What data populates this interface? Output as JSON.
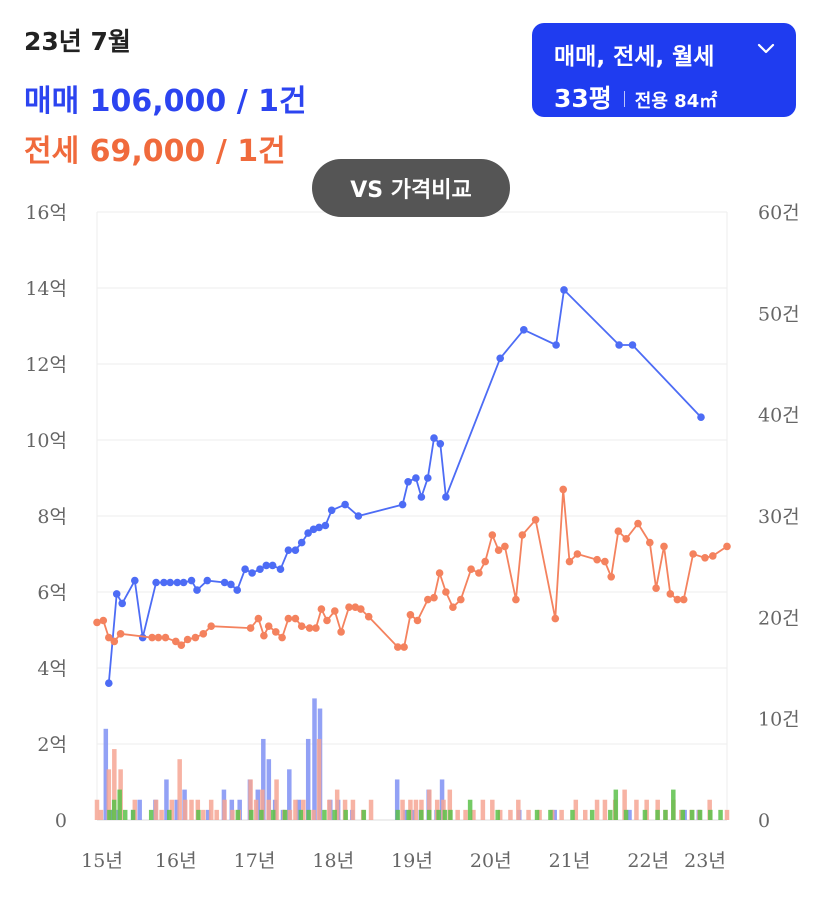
{
  "header": {
    "date": "23년 7월",
    "sale_summary": "매매 106,000 / 1건",
    "jeonse_summary": "전세 69,000 / 1건"
  },
  "type_selector": {
    "label": "매매, 전세, 월세",
    "pyeong": "33평",
    "area": "전용 84㎡"
  },
  "vs_button": {
    "label": "VS 가격비교"
  },
  "colors": {
    "sale": "#4d6cf5",
    "jeonse": "#f4825e",
    "monthly": "#5cc14a",
    "button": "#1f3cf0"
  },
  "chart_data": {
    "type": "line",
    "x_ticks": [
      "15년",
      "16년",
      "17년",
      "18년",
      "19년",
      "20년",
      "21년",
      "22년",
      "23년"
    ],
    "y_left_ticks": [
      "0",
      "2억",
      "4억",
      "6억",
      "8억",
      "10억",
      "12억",
      "14억",
      "16억"
    ],
    "y_right_ticks": [
      "0",
      "10건",
      "20건",
      "30건",
      "40건",
      "50건",
      "60건"
    ],
    "x_range": [
      2015.0,
      2023.0
    ],
    "y_left_range": [
      0,
      16
    ],
    "y_right_range": [
      0,
      60
    ],
    "grid": true,
    "price_series": [
      {
        "name": "매매",
        "color": "#4d6cf5",
        "points": [
          [
            2015.15,
            3.6
          ],
          [
            2015.25,
            5.95
          ],
          [
            2015.32,
            5.7
          ],
          [
            2015.48,
            6.3
          ],
          [
            2015.58,
            4.8
          ],
          [
            2015.75,
            6.25
          ],
          [
            2015.85,
            6.25
          ],
          [
            2015.93,
            6.25
          ],
          [
            2016.02,
            6.25
          ],
          [
            2016.1,
            6.25
          ],
          [
            2016.2,
            6.3
          ],
          [
            2016.27,
            6.05
          ],
          [
            2016.4,
            6.3
          ],
          [
            2016.62,
            6.25
          ],
          [
            2016.7,
            6.2
          ],
          [
            2016.78,
            6.05
          ],
          [
            2016.88,
            6.6
          ],
          [
            2016.97,
            6.5
          ],
          [
            2017.07,
            6.6
          ],
          [
            2017.15,
            6.7
          ],
          [
            2017.23,
            6.7
          ],
          [
            2017.33,
            6.6
          ],
          [
            2017.43,
            7.1
          ],
          [
            2017.52,
            7.1
          ],
          [
            2017.6,
            7.3
          ],
          [
            2017.68,
            7.55
          ],
          [
            2017.75,
            7.65
          ],
          [
            2017.82,
            7.7
          ],
          [
            2017.9,
            7.75
          ],
          [
            2017.98,
            8.15
          ],
          [
            2018.15,
            8.3
          ],
          [
            2018.32,
            8.0
          ],
          [
            2018.88,
            8.3
          ],
          [
            2018.95,
            8.9
          ],
          [
            2019.05,
            9.0
          ],
          [
            2019.12,
            8.5
          ],
          [
            2019.2,
            9.0
          ],
          [
            2019.28,
            10.05
          ],
          [
            2019.36,
            9.9
          ],
          [
            2019.43,
            8.5
          ],
          [
            2020.12,
            12.15
          ],
          [
            2020.42,
            12.9
          ],
          [
            2020.83,
            12.5
          ],
          [
            2020.93,
            13.95
          ],
          [
            2021.63,
            12.5
          ],
          [
            2021.8,
            12.5
          ],
          [
            2022.67,
            10.6
          ]
        ]
      },
      {
        "name": "전세",
        "color": "#f4825e",
        "points": [
          [
            2015.0,
            5.2
          ],
          [
            2015.08,
            5.25
          ],
          [
            2015.15,
            4.8
          ],
          [
            2015.22,
            4.7
          ],
          [
            2015.3,
            4.9
          ],
          [
            2015.7,
            4.8
          ],
          [
            2015.78,
            4.8
          ],
          [
            2015.87,
            4.8
          ],
          [
            2016.0,
            4.7
          ],
          [
            2016.07,
            4.6
          ],
          [
            2016.15,
            4.75
          ],
          [
            2016.25,
            4.8
          ],
          [
            2016.35,
            4.9
          ],
          [
            2016.45,
            5.1
          ],
          [
            2016.95,
            5.05
          ],
          [
            2017.05,
            5.3
          ],
          [
            2017.12,
            4.85
          ],
          [
            2017.18,
            5.1
          ],
          [
            2017.27,
            4.95
          ],
          [
            2017.35,
            4.8
          ],
          [
            2017.43,
            5.3
          ],
          [
            2017.52,
            5.3
          ],
          [
            2017.6,
            5.1
          ],
          [
            2017.7,
            5.05
          ],
          [
            2017.78,
            5.05
          ],
          [
            2017.85,
            5.55
          ],
          [
            2017.92,
            5.25
          ],
          [
            2018.02,
            5.5
          ],
          [
            2018.1,
            4.95
          ],
          [
            2018.2,
            5.6
          ],
          [
            2018.28,
            5.6
          ],
          [
            2018.35,
            5.55
          ],
          [
            2018.45,
            5.35
          ],
          [
            2018.82,
            4.55
          ],
          [
            2018.9,
            4.55
          ],
          [
            2018.98,
            5.4
          ],
          [
            2019.07,
            5.25
          ],
          [
            2019.2,
            5.8
          ],
          [
            2019.28,
            5.85
          ],
          [
            2019.35,
            6.5
          ],
          [
            2019.43,
            6.0
          ],
          [
            2019.52,
            5.6
          ],
          [
            2019.62,
            5.8
          ],
          [
            2019.75,
            6.6
          ],
          [
            2019.85,
            6.5
          ],
          [
            2019.93,
            6.8
          ],
          [
            2020.02,
            7.5
          ],
          [
            2020.1,
            7.1
          ],
          [
            2020.18,
            7.2
          ],
          [
            2020.32,
            5.8
          ],
          [
            2020.4,
            7.5
          ],
          [
            2020.57,
            7.9
          ],
          [
            2020.82,
            5.3
          ],
          [
            2020.92,
            8.7
          ],
          [
            2021.0,
            6.8
          ],
          [
            2021.1,
            7.0
          ],
          [
            2021.35,
            6.85
          ],
          [
            2021.45,
            6.8
          ],
          [
            2021.53,
            6.4
          ],
          [
            2021.62,
            7.6
          ],
          [
            2021.72,
            7.4
          ],
          [
            2021.87,
            7.8
          ],
          [
            2022.02,
            7.3
          ],
          [
            2022.1,
            6.1
          ],
          [
            2022.2,
            7.2
          ],
          [
            2022.28,
            5.95
          ],
          [
            2022.37,
            5.8
          ],
          [
            2022.45,
            5.8
          ],
          [
            2022.57,
            7.0
          ],
          [
            2022.72,
            6.9
          ],
          [
            2022.82,
            6.95
          ],
          [
            2023.0,
            7.2
          ]
        ]
      }
    ],
    "volume_series": [
      {
        "name": "매매",
        "color": "#7f90f3",
        "bars": [
          [
            2015.15,
            9
          ],
          [
            2015.22,
            1
          ],
          [
            2015.3,
            1
          ],
          [
            2015.5,
            1
          ],
          [
            2015.58,
            2
          ],
          [
            2015.78,
            2
          ],
          [
            2015.92,
            4
          ],
          [
            2016.05,
            2
          ],
          [
            2016.15,
            3
          ],
          [
            2016.45,
            1
          ],
          [
            2016.65,
            3
          ],
          [
            2016.75,
            2
          ],
          [
            2016.85,
            2
          ],
          [
            2016.98,
            4
          ],
          [
            2017.08,
            3
          ],
          [
            2017.15,
            8
          ],
          [
            2017.22,
            6
          ],
          [
            2017.3,
            2
          ],
          [
            2017.4,
            1
          ],
          [
            2017.48,
            5
          ],
          [
            2017.6,
            2
          ],
          [
            2017.72,
            8
          ],
          [
            2017.8,
            12
          ],
          [
            2017.87,
            11
          ],
          [
            2018.0,
            2
          ],
          [
            2018.1,
            2
          ],
          [
            2018.28,
            1
          ],
          [
            2018.85,
            4
          ],
          [
            2018.95,
            1
          ],
          [
            2019.05,
            1
          ],
          [
            2019.15,
            1
          ],
          [
            2019.25,
            3
          ],
          [
            2019.35,
            1
          ],
          [
            2019.42,
            4
          ],
          [
            2020.4,
            1
          ],
          [
            2020.85,
            1
          ],
          [
            2021.8,
            1
          ],
          [
            2022.5,
            1
          ],
          [
            2022.68,
            1
          ]
        ]
      },
      {
        "name": "전세",
        "color": "#f6a694",
        "bars": [
          [
            2015.0,
            2
          ],
          [
            2015.05,
            1
          ],
          [
            2015.15,
            5
          ],
          [
            2015.22,
            7
          ],
          [
            2015.3,
            5
          ],
          [
            2015.48,
            2
          ],
          [
            2015.75,
            2
          ],
          [
            2015.82,
            1
          ],
          [
            2015.95,
            2
          ],
          [
            2016.05,
            6
          ],
          [
            2016.12,
            2
          ],
          [
            2016.2,
            2
          ],
          [
            2016.28,
            2
          ],
          [
            2016.35,
            1
          ],
          [
            2016.45,
            2
          ],
          [
            2016.52,
            1
          ],
          [
            2016.62,
            2
          ],
          [
            2016.72,
            1
          ],
          [
            2016.8,
            1
          ],
          [
            2016.95,
            4
          ],
          [
            2017.02,
            2
          ],
          [
            2017.1,
            3
          ],
          [
            2017.18,
            2
          ],
          [
            2017.28,
            4
          ],
          [
            2017.38,
            1
          ],
          [
            2017.45,
            1
          ],
          [
            2017.52,
            2
          ],
          [
            2017.62,
            2
          ],
          [
            2017.75,
            1
          ],
          [
            2017.82,
            8
          ],
          [
            2017.95,
            2
          ],
          [
            2018.05,
            3
          ],
          [
            2018.15,
            2
          ],
          [
            2018.25,
            2
          ],
          [
            2018.38,
            1
          ],
          [
            2018.48,
            2
          ],
          [
            2018.88,
            2
          ],
          [
            2018.98,
            2
          ],
          [
            2019.05,
            2
          ],
          [
            2019.12,
            2
          ],
          [
            2019.22,
            3
          ],
          [
            2019.32,
            2
          ],
          [
            2019.4,
            2
          ],
          [
            2019.48,
            3
          ],
          [
            2019.58,
            1
          ],
          [
            2019.68,
            1
          ],
          [
            2019.78,
            1
          ],
          [
            2019.9,
            2
          ],
          [
            2020.02,
            2
          ],
          [
            2020.12,
            1
          ],
          [
            2020.25,
            1
          ],
          [
            2020.35,
            2
          ],
          [
            2020.48,
            1
          ],
          [
            2020.62,
            1
          ],
          [
            2020.78,
            1
          ],
          [
            2020.9,
            1
          ],
          [
            2021.08,
            2
          ],
          [
            2021.2,
            1
          ],
          [
            2021.35,
            2
          ],
          [
            2021.45,
            2
          ],
          [
            2021.58,
            2
          ],
          [
            2021.7,
            3
          ],
          [
            2021.85,
            2
          ],
          [
            2021.98,
            2
          ],
          [
            2022.12,
            2
          ],
          [
            2022.22,
            1
          ],
          [
            2022.32,
            2
          ],
          [
            2022.42,
            1
          ],
          [
            2022.55,
            1
          ],
          [
            2022.65,
            1
          ],
          [
            2022.78,
            2
          ],
          [
            2023.0,
            1
          ]
        ]
      },
      {
        "name": "월세",
        "color": "#5cc14a",
        "bars": [
          [
            2015.12,
            1
          ],
          [
            2015.18,
            2
          ],
          [
            2015.25,
            3
          ],
          [
            2015.32,
            1
          ],
          [
            2015.42,
            1
          ],
          [
            2015.65,
            1
          ],
          [
            2015.88,
            1
          ],
          [
            2016.25,
            1
          ],
          [
            2016.75,
            1
          ],
          [
            2016.92,
            1
          ],
          [
            2017.05,
            1
          ],
          [
            2017.2,
            1
          ],
          [
            2017.35,
            1
          ],
          [
            2017.55,
            1
          ],
          [
            2017.65,
            1
          ],
          [
            2017.85,
            1
          ],
          [
            2017.98,
            1
          ],
          [
            2018.12,
            1
          ],
          [
            2018.35,
            1
          ],
          [
            2018.78,
            1
          ],
          [
            2018.92,
            1
          ],
          [
            2019.08,
            1
          ],
          [
            2019.18,
            1
          ],
          [
            2019.3,
            1
          ],
          [
            2019.38,
            1
          ],
          [
            2019.45,
            1
          ],
          [
            2019.7,
            2
          ],
          [
            2020.05,
            1
          ],
          [
            2020.55,
            1
          ],
          [
            2020.72,
            1
          ],
          [
            2021.0,
            1
          ],
          [
            2021.25,
            1
          ],
          [
            2021.48,
            1
          ],
          [
            2021.55,
            3
          ],
          [
            2021.68,
            1
          ],
          [
            2021.92,
            1
          ],
          [
            2022.08,
            1
          ],
          [
            2022.18,
            1
          ],
          [
            2022.28,
            3
          ],
          [
            2022.4,
            1
          ],
          [
            2022.52,
            1
          ],
          [
            2022.62,
            1
          ],
          [
            2022.75,
            1
          ],
          [
            2022.88,
            1
          ]
        ]
      }
    ]
  }
}
